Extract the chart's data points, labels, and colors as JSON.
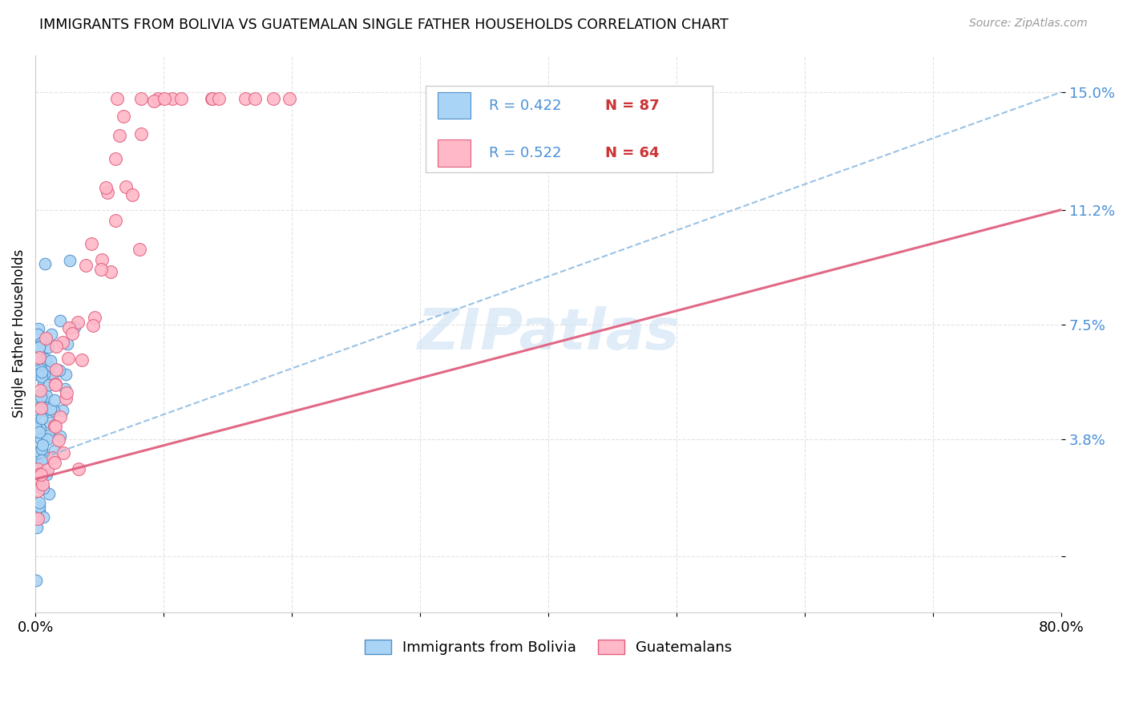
{
  "title": "IMMIGRANTS FROM BOLIVIA VS GUATEMALAN SINGLE FATHER HOUSEHOLDS CORRELATION CHART",
  "source": "Source: ZipAtlas.com",
  "ylabel": "Single Father Households",
  "xlim": [
    0.0,
    0.8
  ],
  "ylim": [
    -0.018,
    0.162
  ],
  "ytick_values": [
    0.0,
    0.038,
    0.075,
    0.112,
    0.15
  ],
  "ytick_labels": [
    "",
    "3.8%",
    "7.5%",
    "11.2%",
    "15.0%"
  ],
  "xtick_values": [
    0.0,
    0.1,
    0.2,
    0.3,
    0.4,
    0.5,
    0.6,
    0.7,
    0.8
  ],
  "xtick_labels": [
    "0.0%",
    "",
    "",
    "",
    "",
    "",
    "",
    "",
    "80.0%"
  ],
  "bolivia_color": "#aad4f5",
  "bolivia_edge": "#5090c8",
  "guatemalan_color": "#ffb8c8",
  "guatemalan_edge": "#e06080",
  "bolivia_line_color": "#88b8e0",
  "guatemalan_line_color": "#e06080",
  "watermark": "ZIPatlas",
  "background_color": "#ffffff",
  "grid_color": "#e0e0e0",
  "legend_R1": "R = 0.422",
  "legend_N1": "N = 87",
  "legend_R2": "R = 0.522",
  "legend_N2": "N = 64",
  "legend_label1": "Immigrants from Bolivia",
  "legend_label2": "Guatemalans",
  "r_color": "#4a90d8",
  "n_color": "#cc3333",
  "bolivia_line_x0": 0.0,
  "bolivia_line_y0": 0.031,
  "bolivia_line_x1": 0.8,
  "bolivia_line_y1": 0.15,
  "guatemalan_line_x0": 0.0,
  "guatemalan_line_y0": 0.025,
  "guatemalan_line_x1": 0.8,
  "guatemalan_line_y1": 0.112
}
